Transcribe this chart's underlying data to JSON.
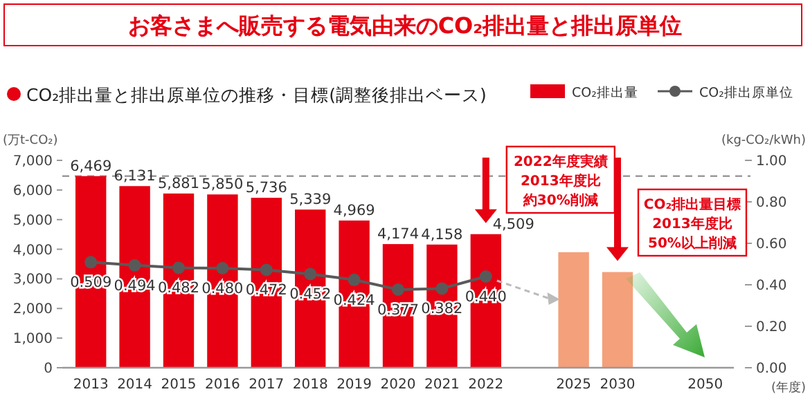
{
  "chart_data": {
    "type": "bar",
    "title": "お客さまへ販売する電気由来のCO₂排出量と排出原単位",
    "subtitle": "CO₂排出量と排出原単位の推移・目標(調整後排出ベース)",
    "ylabel": "(万t-CO₂)",
    "y2label": "(kg-CO₂/kWh)",
    "xlabel": "(年度)",
    "categories": [
      "2013",
      "2014",
      "2015",
      "2016",
      "2017",
      "2018",
      "2019",
      "2020",
      "2021",
      "2022",
      null,
      "2025",
      "2030",
      null,
      "2050"
    ],
    "series": [
      {
        "name": "CO₂排出量",
        "color": "#e60012",
        "colors": [
          "#e60012",
          "#e60012",
          "#e60012",
          "#e60012",
          "#e60012",
          "#e60012",
          "#e60012",
          "#e60012",
          "#e60012",
          "#e60012",
          null,
          "#f4a07a",
          "#f4a07a",
          null,
          null
        ],
        "values": [
          6469,
          6131,
          5881,
          5850,
          5736,
          5339,
          4969,
          4174,
          4158,
          4509,
          null,
          3900,
          3230,
          null,
          null
        ],
        "value_labels": [
          "6,469",
          "6,131",
          "5,881",
          "5,850",
          "5,736",
          "5,339",
          "4,969",
          "4,174",
          "4,158",
          "4,509",
          null,
          null,
          null,
          null,
          null
        ]
      },
      {
        "name": "CO₂排出原単位",
        "type": "line",
        "axis": "y2",
        "color": "#595959",
        "values": [
          0.509,
          0.494,
          0.482,
          0.48,
          0.472,
          0.452,
          0.424,
          0.377,
          0.382,
          0.44,
          null,
          null,
          null,
          null,
          null
        ],
        "value_labels": [
          "0.509",
          "0.494",
          "0.482",
          "0.480",
          "0.472",
          "0.452",
          "0.424",
          "0.377",
          "0.382",
          "0.440",
          null,
          null,
          null,
          null,
          null
        ]
      }
    ],
    "ylim": [
      0,
      7000
    ],
    "yticks": [
      0,
      {
        "value": 1000,
        "label": "1,000"
      },
      {
        "value": 2000,
        "label": "2,000"
      },
      {
        "value": 3000,
        "label": "3,000"
      },
      {
        "value": 4000,
        "label": "4,000"
      },
      {
        "value": 5000,
        "label": "5,000"
      },
      {
        "value": 6000,
        "label": "6,000"
      },
      {
        "value": 7000,
        "label": "7,000"
      }
    ],
    "y2lim": [
      0,
      1
    ],
    "y2ticks": [
      {
        "value": 0,
        "label": "0.00"
      },
      {
        "value": 0.2,
        "label": "0.20"
      },
      {
        "value": 0.4,
        "label": "0.40"
      },
      {
        "value": 0.6,
        "label": "0.60"
      },
      {
        "value": 0.8,
        "label": "0.80"
      },
      {
        "value": 1,
        "label": "1.00"
      }
    ],
    "ref_lines": [
      {
        "axis": "y",
        "value": 6469,
        "color": "#999999",
        "line_style": "dashed"
      }
    ],
    "annotations": [
      "2022年度実績",
      "2013年度比",
      "約30%削減",
      "CO₂排出量目標",
      "2013年度比",
      "50%以上削減"
    ],
    "legend": "top right",
    "marker": "circle",
    "grid": false
  }
}
